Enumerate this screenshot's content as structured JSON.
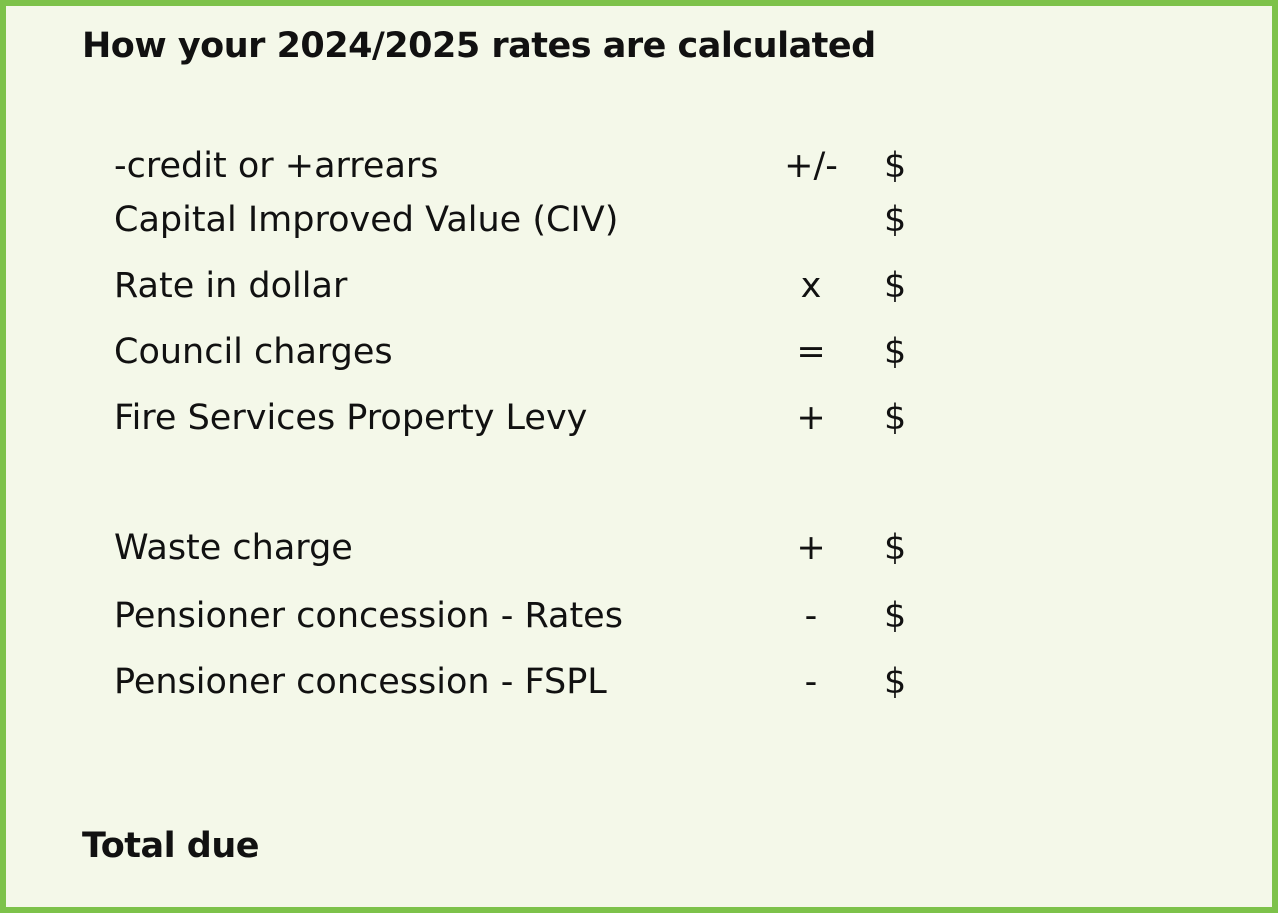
{
  "title": "How your 2024/2025 rates are calculated",
  "rows": [
    {
      "label": "-credit or +arrears",
      "op": "+/-",
      "currency": "$"
    },
    {
      "label": "Capital Improved Value (CIV)",
      "op": "",
      "currency": "$"
    },
    {
      "label": "Rate in dollar",
      "op": "x",
      "currency": "$"
    },
    {
      "label": "Council charges",
      "op": "=",
      "currency": "$"
    },
    {
      "label": "Fire Services Property Levy",
      "op": "+",
      "currency": "$"
    },
    {
      "label": "Waste charge",
      "op": "+",
      "currency": "$"
    },
    {
      "label": "Pensioner concession - Rates",
      "op": "-",
      "currency": "$"
    },
    {
      "label": "Pensioner concession - FSPL",
      "op": "-",
      "currency": "$"
    }
  ],
  "total_label": "Total due",
  "colors": {
    "border": "#7dc24a",
    "background": "#f4f8e9"
  }
}
